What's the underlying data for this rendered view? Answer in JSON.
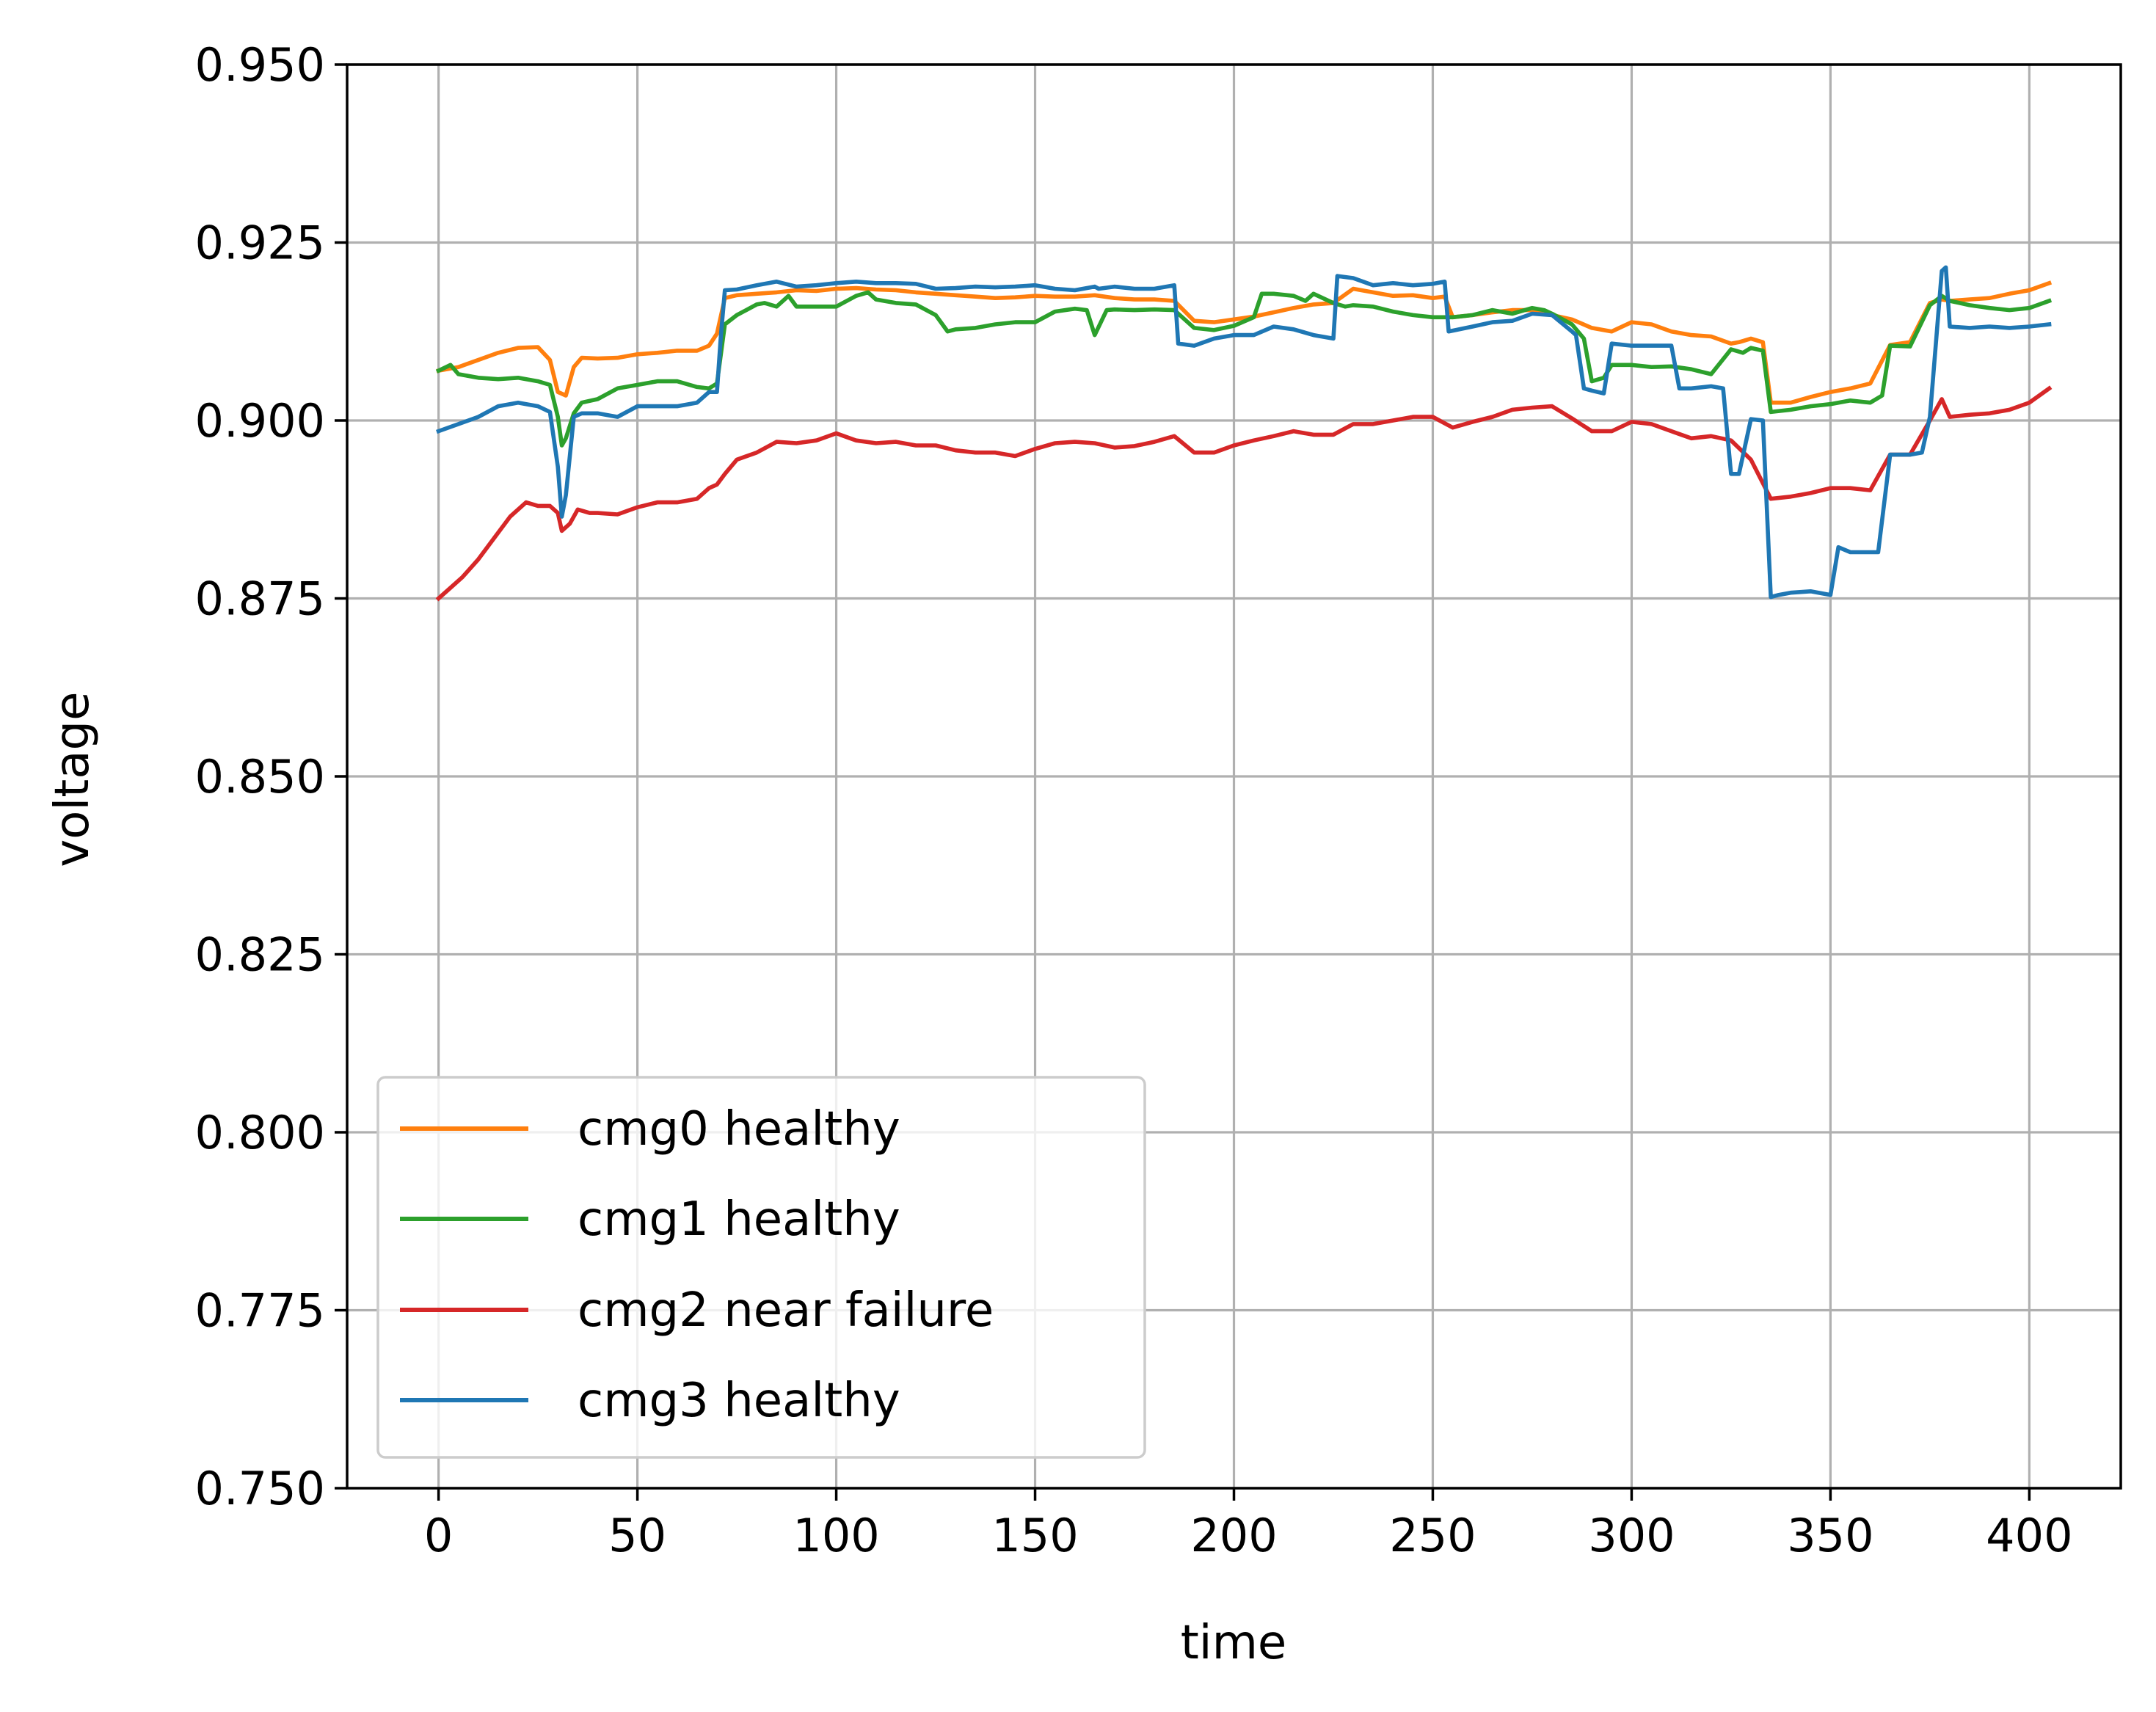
{
  "chart_data": {
    "type": "line",
    "title": "",
    "xlabel": "time",
    "ylabel": "voltage",
    "xlim": [
      -23,
      423
    ],
    "ylim": [
      0.75,
      0.95
    ],
    "xticks": [
      0,
      50,
      100,
      150,
      200,
      250,
      300,
      350,
      400
    ],
    "yticks": [
      0.75,
      0.775,
      0.8,
      0.825,
      0.85,
      0.875,
      0.9,
      0.925,
      0.95
    ],
    "xtick_labels": [
      "0",
      "50",
      "100",
      "150",
      "200",
      "250",
      "300",
      "350",
      "400"
    ],
    "ytick_labels": [
      "0.750",
      "0.775",
      "0.800",
      "0.825",
      "0.850",
      "0.875",
      "0.900",
      "0.925",
      "0.950"
    ],
    "grid": true,
    "legend_position": "lower-left",
    "series": [
      {
        "name": "cmg0 healthy",
        "color": "#ff7f0e",
        "x": [
          0,
          5,
          10,
          15,
          20,
          25,
          28,
          30,
          32,
          34,
          36,
          40,
          45,
          50,
          55,
          60,
          65,
          68,
          70,
          72,
          75,
          80,
          85,
          90,
          95,
          100,
          105,
          110,
          115,
          120,
          125,
          130,
          135,
          140,
          145,
          150,
          155,
          160,
          165,
          170,
          175,
          180,
          185,
          190,
          195,
          200,
          205,
          210,
          215,
          220,
          225,
          230,
          235,
          240,
          245,
          250,
          253,
          255,
          260,
          265,
          270,
          275,
          280,
          285,
          290,
          295,
          300,
          305,
          310,
          315,
          320,
          325,
          327,
          330,
          333,
          335,
          340,
          345,
          350,
          355,
          360,
          365,
          370,
          375,
          378,
          380,
          385,
          390,
          395,
          400,
          405
        ],
        "y": [
          0.907,
          0.9075,
          0.9085,
          0.9095,
          0.9102,
          0.9103,
          0.9085,
          0.904,
          0.9035,
          0.9075,
          0.9088,
          0.9087,
          0.9088,
          0.9093,
          0.9095,
          0.9098,
          0.9098,
          0.9105,
          0.9122,
          0.9172,
          0.9176,
          0.9178,
          0.918,
          0.9183,
          0.9182,
          0.9185,
          0.9186,
          0.9184,
          0.9183,
          0.918,
          0.9178,
          0.9176,
          0.9174,
          0.9172,
          0.9173,
          0.9175,
          0.9174,
          0.9174,
          0.9176,
          0.9172,
          0.917,
          0.917,
          0.9168,
          0.914,
          0.9138,
          0.9142,
          0.9146,
          0.9152,
          0.9158,
          0.9163,
          0.9165,
          0.9185,
          0.918,
          0.9175,
          0.9176,
          0.9172,
          0.9174,
          0.9145,
          0.9148,
          0.9152,
          0.9155,
          0.9155,
          0.9148,
          0.9142,
          0.913,
          0.9125,
          0.9138,
          0.9135,
          0.9125,
          0.912,
          0.9118,
          0.9108,
          0.911,
          0.9115,
          0.911,
          0.9025,
          0.9025,
          0.9033,
          0.904,
          0.9045,
          0.9052,
          0.9106,
          0.911,
          0.9165,
          0.917,
          0.9168,
          0.917,
          0.9172,
          0.9178,
          0.9183,
          0.9193
        ]
      },
      {
        "name": "cmg1 healthy",
        "color": "#2ca02c",
        "x": [
          0,
          3,
          5,
          10,
          15,
          20,
          25,
          28,
          30,
          31,
          32,
          34,
          36,
          40,
          45,
          50,
          55,
          60,
          65,
          68,
          70,
          72,
          75,
          80,
          82,
          85,
          88,
          90,
          95,
          100,
          105,
          108,
          110,
          115,
          120,
          125,
          128,
          130,
          135,
          140,
          145,
          150,
          155,
          160,
          163,
          165,
          168,
          170,
          175,
          180,
          185,
          190,
          195,
          200,
          205,
          207,
          210,
          215,
          218,
          220,
          225,
          228,
          230,
          235,
          240,
          245,
          250,
          255,
          260,
          265,
          270,
          275,
          278,
          280,
          285,
          288,
          290,
          293,
          295,
          300,
          305,
          310,
          315,
          320,
          325,
          328,
          330,
          333,
          335,
          340,
          345,
          350,
          355,
          360,
          363,
          365,
          370,
          375,
          378,
          380,
          385,
          390,
          395,
          400,
          405
        ],
        "y": [
          0.907,
          0.9078,
          0.9065,
          0.906,
          0.9058,
          0.906,
          0.9055,
          0.905,
          0.9005,
          0.8965,
          0.8975,
          0.901,
          0.9025,
          0.903,
          0.9045,
          0.905,
          0.9055,
          0.9055,
          0.9047,
          0.9045,
          0.9052,
          0.9135,
          0.9148,
          0.9163,
          0.9165,
          0.916,
          0.9175,
          0.916,
          0.916,
          0.916,
          0.9175,
          0.918,
          0.917,
          0.9165,
          0.9163,
          0.9148,
          0.9125,
          0.9128,
          0.913,
          0.9135,
          0.9138,
          0.9138,
          0.9153,
          0.9157,
          0.9155,
          0.912,
          0.9155,
          0.9156,
          0.9155,
          0.9156,
          0.9155,
          0.913,
          0.9127,
          0.9133,
          0.9145,
          0.9178,
          0.9178,
          0.9175,
          0.9168,
          0.9178,
          0.9165,
          0.916,
          0.9162,
          0.916,
          0.9153,
          0.9148,
          0.9145,
          0.9145,
          0.9148,
          0.9155,
          0.915,
          0.9158,
          0.9155,
          0.915,
          0.9135,
          0.9115,
          0.9055,
          0.906,
          0.9078,
          0.9078,
          0.9075,
          0.9076,
          0.9072,
          0.9065,
          0.91,
          0.9095,
          0.9102,
          0.9098,
          0.9012,
          0.9015,
          0.902,
          0.9023,
          0.9028,
          0.9025,
          0.9035,
          0.9105,
          0.9104,
          0.9162,
          0.9175,
          0.9168,
          0.9162,
          0.9158,
          0.9155,
          0.9158,
          0.9168
        ]
      },
      {
        "name": "cmg2 near failure",
        "color": "#d62728",
        "x": [
          0,
          3,
          6,
          10,
          14,
          18,
          22,
          25,
          28,
          30,
          31,
          33,
          35,
          38,
          40,
          45,
          50,
          55,
          60,
          65,
          68,
          70,
          72,
          75,
          80,
          85,
          90,
          95,
          100,
          105,
          110,
          115,
          120,
          125,
          130,
          135,
          140,
          145,
          150,
          155,
          160,
          165,
          170,
          175,
          180,
          185,
          190,
          195,
          200,
          205,
          210,
          215,
          220,
          225,
          230,
          235,
          240,
          245,
          250,
          255,
          260,
          265,
          270,
          275,
          280,
          285,
          290,
          295,
          300,
          305,
          310,
          315,
          320,
          325,
          330,
          335,
          340,
          345,
          350,
          355,
          360,
          365,
          370,
          375,
          378,
          380,
          385,
          390,
          395,
          400,
          405
        ],
        "y": [
          0.875,
          0.8765,
          0.878,
          0.8805,
          0.8835,
          0.8865,
          0.8885,
          0.888,
          0.888,
          0.887,
          0.8845,
          0.8855,
          0.8875,
          0.887,
          0.887,
          0.8868,
          0.8878,
          0.8885,
          0.8885,
          0.889,
          0.8905,
          0.891,
          0.8925,
          0.8945,
          0.8955,
          0.897,
          0.8968,
          0.8972,
          0.8982,
          0.8972,
          0.8968,
          0.897,
          0.8965,
          0.8965,
          0.8958,
          0.8955,
          0.8955,
          0.895,
          0.896,
          0.8968,
          0.897,
          0.8968,
          0.8962,
          0.8964,
          0.897,
          0.8978,
          0.8955,
          0.8955,
          0.8965,
          0.8972,
          0.8978,
          0.8985,
          0.898,
          0.898,
          0.8995,
          0.8995,
          0.9,
          0.9005,
          0.9005,
          0.899,
          0.8998,
          0.9005,
          0.9015,
          0.9018,
          0.902,
          0.9003,
          0.8985,
          0.8985,
          0.8998,
          0.8995,
          0.8985,
          0.8975,
          0.8978,
          0.8972,
          0.8945,
          0.889,
          0.8893,
          0.8898,
          0.8905,
          0.8905,
          0.8902,
          0.8952,
          0.8952,
          0.9,
          0.903,
          0.9005,
          0.9008,
          0.901,
          0.9015,
          0.9025,
          0.9045
        ]
      },
      {
        "name": "cmg3 healthy",
        "color": "#1f77b4",
        "x": [
          0,
          5,
          10,
          15,
          20,
          25,
          28,
          30,
          31,
          32,
          33,
          34,
          36,
          40,
          45,
          50,
          55,
          60,
          65,
          68,
          70,
          71,
          72,
          75,
          80,
          85,
          90,
          95,
          100,
          105,
          110,
          115,
          120,
          125,
          130,
          135,
          140,
          145,
          150,
          155,
          160,
          165,
          166,
          170,
          175,
          180,
          185,
          186,
          190,
          195,
          200,
          205,
          210,
          215,
          220,
          225,
          226,
          230,
          235,
          240,
          245,
          250,
          253,
          254,
          260,
          265,
          270,
          275,
          280,
          285,
          286,
          288,
          290,
          293,
          295,
          300,
          305,
          310,
          312,
          315,
          320,
          323,
          325,
          327,
          330,
          333,
          335,
          337,
          340,
          345,
          350,
          352,
          355,
          360,
          362,
          365,
          370,
          373,
          375,
          378,
          379,
          380,
          385,
          390,
          395,
          400,
          405
        ],
        "y": [
          0.8985,
          0.8995,
          0.9005,
          0.902,
          0.9025,
          0.902,
          0.9012,
          0.8935,
          0.8865,
          0.8895,
          0.895,
          0.9005,
          0.901,
          0.901,
          0.9005,
          0.902,
          0.902,
          0.902,
          0.9025,
          0.904,
          0.904,
          0.912,
          0.9183,
          0.9184,
          0.919,
          0.9195,
          0.9188,
          0.919,
          0.9193,
          0.9195,
          0.9193,
          0.9193,
          0.9192,
          0.9185,
          0.9186,
          0.9188,
          0.9187,
          0.9188,
          0.919,
          0.9185,
          0.9183,
          0.9188,
          0.9185,
          0.9188,
          0.9185,
          0.9185,
          0.919,
          0.9108,
          0.9105,
          0.9115,
          0.912,
          0.912,
          0.9132,
          0.9128,
          0.912,
          0.9115,
          0.9203,
          0.92,
          0.919,
          0.9193,
          0.919,
          0.9192,
          0.9195,
          0.9125,
          0.9132,
          0.9138,
          0.914,
          0.915,
          0.9148,
          0.9125,
          0.912,
          0.9045,
          0.9042,
          0.9038,
          0.9108,
          0.9105,
          0.9105,
          0.9105,
          0.9045,
          0.9045,
          0.9048,
          0.9045,
          0.8925,
          0.8925,
          0.9002,
          0.9,
          0.8752,
          0.8755,
          0.8758,
          0.876,
          0.8755,
          0.8822,
          0.8815,
          0.8815,
          0.8815,
          0.8952,
          0.8952,
          0.8955,
          0.9005,
          0.921,
          0.9215,
          0.9132,
          0.913,
          0.9132,
          0.913,
          0.9132,
          0.9135
        ]
      }
    ]
  }
}
